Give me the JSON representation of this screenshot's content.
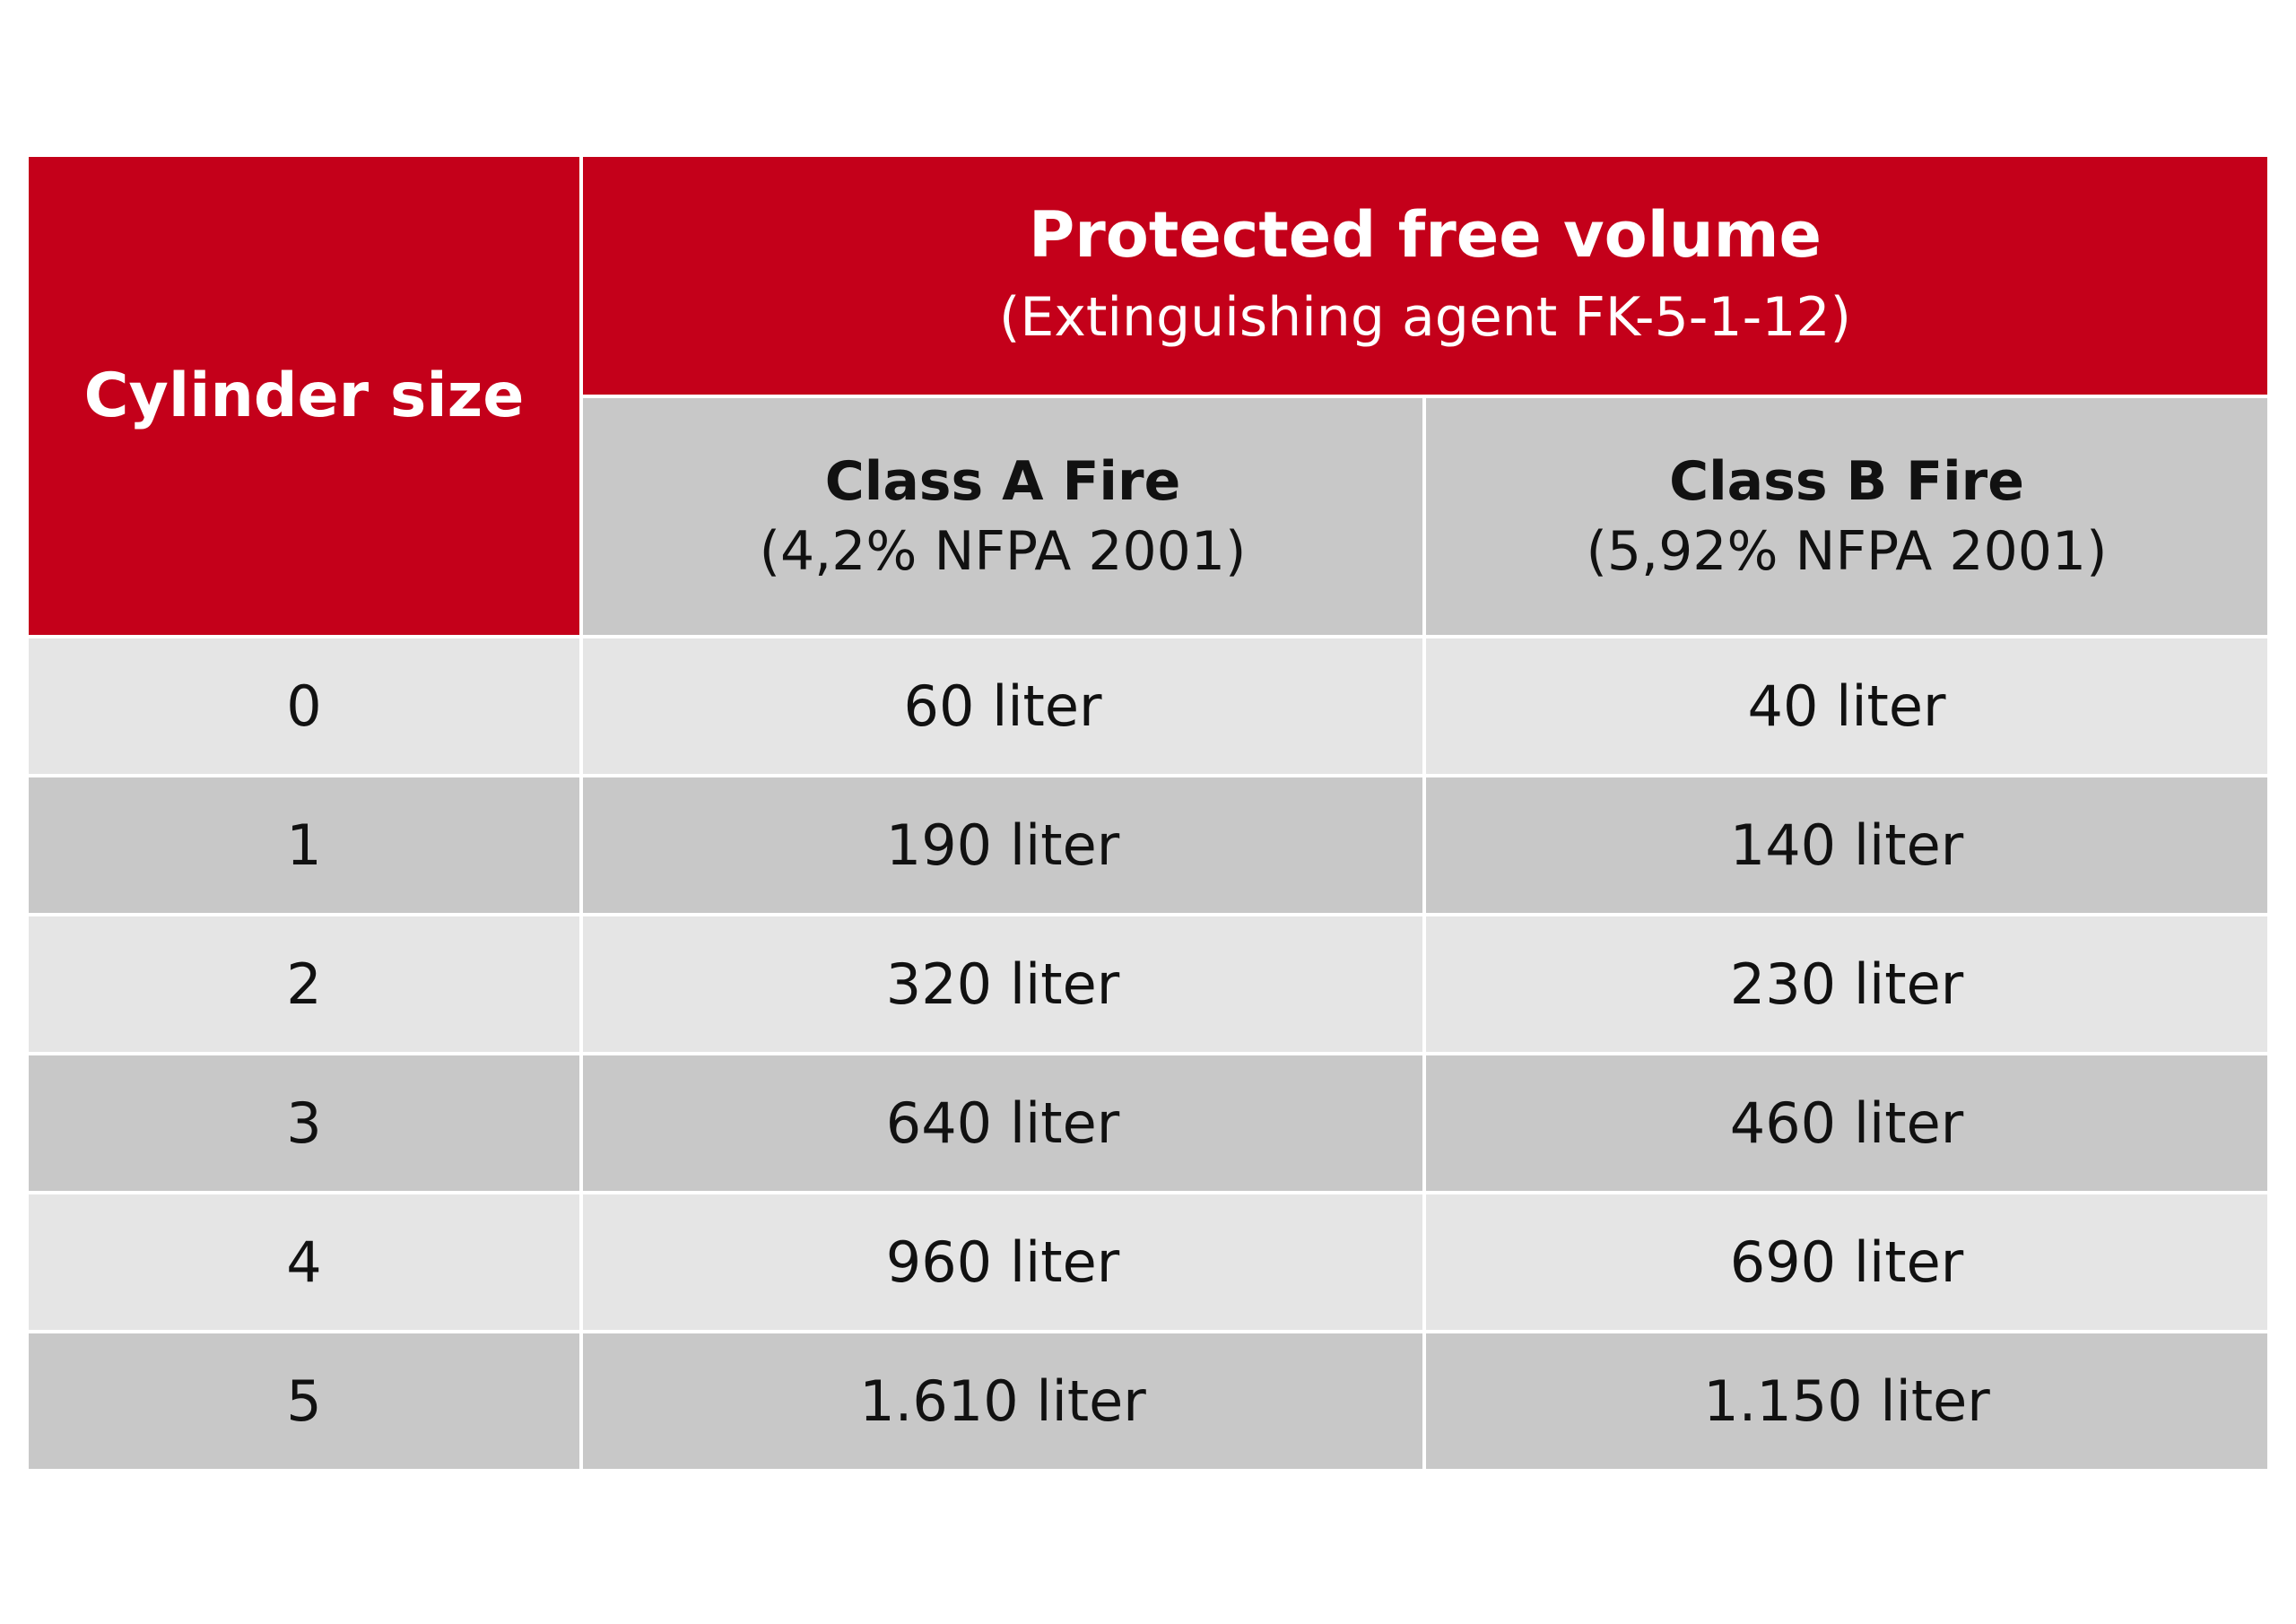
{
  "header": {
    "cylinder_size": "Cylinder size",
    "protected_title": "Protected free volume",
    "protected_subtitle": "(Extinguishing agent FK-5-1-12)",
    "class_a_title": "Class A Fire",
    "class_a_sub": "(4,2% NFPA 2001)",
    "class_b_title": "Class B Fire",
    "class_b_sub": "(5,92% NFPA 2001)"
  },
  "rows": [
    {
      "size": "0",
      "class_a": "60 liter",
      "class_b": "40 liter"
    },
    {
      "size": "1",
      "class_a": "190 liter",
      "class_b": "140 liter"
    },
    {
      "size": "2",
      "class_a": "320 liter",
      "class_b": "230 liter"
    },
    {
      "size": "3",
      "class_a": "640 liter",
      "class_b": "460 liter"
    },
    {
      "size": "4",
      "class_a": "960 liter",
      "class_b": "690 liter"
    },
    {
      "size": "5",
      "class_a": "1.610 liter",
      "class_b": "1.150 liter"
    }
  ],
  "colors": {
    "header_red": "#c4001a",
    "row_light": "#e5e5e5",
    "row_dark": "#c8c8c8"
  }
}
